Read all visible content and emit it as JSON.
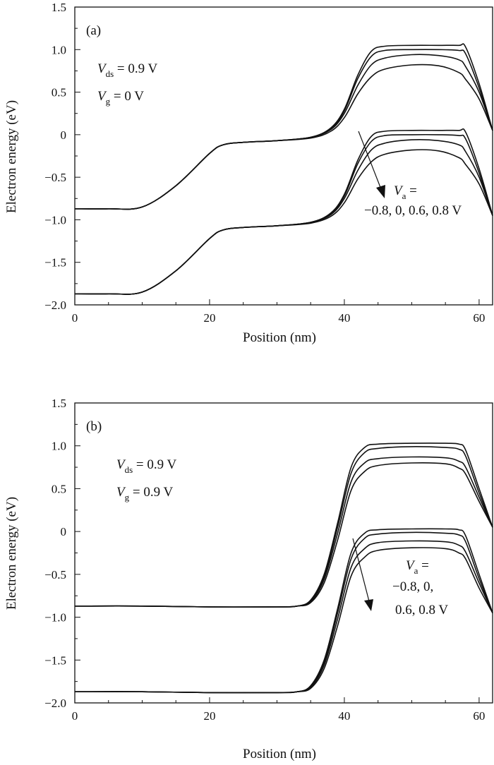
{
  "chart_data": [
    {
      "panel": "(a)",
      "type": "line",
      "xlabel": "Position (nm)",
      "ylabel": "Electron energy (eV)",
      "xlim": [
        0,
        62
      ],
      "ylim": [
        -2.0,
        1.5
      ],
      "xticks": [
        "0",
        "20",
        "40",
        "60"
      ],
      "yticks": [
        "1.5",
        "1.0",
        "0.5",
        "0",
        "-0.5",
        "-1.0",
        "-1.5",
        "-2.0"
      ],
      "grid": false,
      "annotations": {
        "vds": {
          "sym": "V",
          "sub": "ds",
          "rest": " = 0.9 V"
        },
        "vg": {
          "sym": "V",
          "sub": "g",
          "rest": " = 0 V"
        },
        "va_head": {
          "sym": "V",
          "sub": "a",
          "rest": " ="
        },
        "va_values": [
          "−0.8, 0,  0.6, 0.8 V"
        ]
      },
      "series": [
        {
          "band": "upper",
          "x": [
            0,
            5,
            10,
            15,
            20,
            22,
            25,
            30,
            35,
            38,
            40,
            42,
            44,
            46,
            50,
            54,
            57,
            58,
            60,
            62
          ],
          "y": [
            -0.87,
            -0.87,
            -0.85,
            -0.6,
            -0.22,
            -0.12,
            -0.09,
            -0.07,
            -0.03,
            0.08,
            0.3,
            0.7,
            0.98,
            1.04,
            1.05,
            1.05,
            1.05,
            1.03,
            0.6,
            0.05
          ]
        },
        {
          "band": "upper",
          "x": [
            0,
            5,
            10,
            15,
            20,
            22,
            25,
            30,
            35,
            38,
            40,
            42,
            44,
            46,
            50,
            54,
            57,
            58,
            60,
            62
          ],
          "y": [
            -0.87,
            -0.87,
            -0.85,
            -0.6,
            -0.22,
            -0.12,
            -0.09,
            -0.07,
            -0.03,
            0.07,
            0.28,
            0.66,
            0.92,
            0.99,
            1.0,
            1.0,
            0.99,
            0.95,
            0.55,
            0.05
          ]
        },
        {
          "band": "upper",
          "x": [
            0,
            5,
            10,
            15,
            20,
            22,
            25,
            30,
            35,
            38,
            40,
            42,
            44,
            46,
            50,
            54,
            57,
            58,
            60,
            62
          ],
          "y": [
            -0.87,
            -0.87,
            -0.85,
            -0.6,
            -0.22,
            -0.12,
            -0.09,
            -0.07,
            -0.03,
            0.06,
            0.25,
            0.58,
            0.82,
            0.9,
            0.94,
            0.93,
            0.88,
            0.8,
            0.5,
            0.05
          ]
        },
        {
          "band": "upper",
          "x": [
            0,
            5,
            10,
            15,
            20,
            22,
            25,
            30,
            35,
            38,
            40,
            42,
            44,
            46,
            50,
            54,
            57,
            58,
            60,
            62
          ],
          "y": [
            -0.87,
            -0.87,
            -0.85,
            -0.6,
            -0.22,
            -0.12,
            -0.09,
            -0.07,
            -0.04,
            0.04,
            0.2,
            0.48,
            0.68,
            0.77,
            0.82,
            0.81,
            0.73,
            0.65,
            0.42,
            0.05
          ]
        },
        {
          "band": "lower",
          "x": [
            0,
            5,
            10,
            15,
            20,
            22,
            25,
            30,
            35,
            38,
            40,
            42,
            44,
            46,
            50,
            54,
            57,
            58,
            60,
            62
          ],
          "y": [
            -1.87,
            -1.87,
            -1.85,
            -1.6,
            -1.22,
            -1.12,
            -1.09,
            -1.07,
            -1.03,
            -0.92,
            -0.7,
            -0.3,
            -0.02,
            0.04,
            0.05,
            0.05,
            0.05,
            0.03,
            -0.4,
            -0.95
          ]
        },
        {
          "band": "lower",
          "x": [
            0,
            5,
            10,
            15,
            20,
            22,
            25,
            30,
            35,
            38,
            40,
            42,
            44,
            46,
            50,
            54,
            57,
            58,
            60,
            62
          ],
          "y": [
            -1.87,
            -1.87,
            -1.85,
            -1.6,
            -1.22,
            -1.12,
            -1.09,
            -1.07,
            -1.03,
            -0.93,
            -0.72,
            -0.34,
            -0.08,
            -0.01,
            0.0,
            0.0,
            -0.01,
            -0.05,
            -0.45,
            -0.95
          ]
        },
        {
          "band": "lower",
          "x": [
            0,
            5,
            10,
            15,
            20,
            22,
            25,
            30,
            35,
            38,
            40,
            42,
            44,
            46,
            50,
            54,
            57,
            58,
            60,
            62
          ],
          "y": [
            -1.87,
            -1.87,
            -1.85,
            -1.6,
            -1.22,
            -1.12,
            -1.09,
            -1.07,
            -1.03,
            -0.94,
            -0.75,
            -0.42,
            -0.18,
            -0.1,
            -0.06,
            -0.07,
            -0.12,
            -0.2,
            -0.5,
            -0.95
          ]
        },
        {
          "band": "lower",
          "x": [
            0,
            5,
            10,
            15,
            20,
            22,
            25,
            30,
            35,
            38,
            40,
            42,
            44,
            46,
            50,
            54,
            57,
            58,
            60,
            62
          ],
          "y": [
            -1.87,
            -1.87,
            -1.85,
            -1.6,
            -1.22,
            -1.12,
            -1.09,
            -1.07,
            -1.04,
            -0.96,
            -0.8,
            -0.52,
            -0.32,
            -0.23,
            -0.18,
            -0.19,
            -0.27,
            -0.35,
            -0.58,
            -0.95
          ]
        }
      ]
    },
    {
      "panel": "(b)",
      "type": "line",
      "xlabel": "Position (nm)",
      "ylabel": "Electron energy (eV)",
      "xlim": [
        0,
        62
      ],
      "ylim": [
        -2.0,
        1.5
      ],
      "xticks": [
        "0",
        "20",
        "40",
        "60"
      ],
      "yticks": [
        "1.5",
        "1.0",
        "0.5",
        "0",
        "-0.5",
        "-1.0",
        "-1.5",
        "-2.0"
      ],
      "grid": false,
      "annotations": {
        "vds": {
          "sym": "V",
          "sub": "ds",
          "rest": " = 0.9 V"
        },
        "vg": {
          "sym": "V",
          "sub": "g",
          "rest": " = 0.9 V"
        },
        "va_head": {
          "sym": "V",
          "sub": "a",
          "rest": " ="
        },
        "va_values": [
          "−0.8, 0,",
          "0.6, 0.8 V"
        ]
      },
      "series": [
        {
          "band": "upper",
          "x": [
            0,
            10,
            20,
            30,
            33,
            35,
            37,
            39,
            41,
            43,
            45,
            50,
            55,
            57,
            58,
            60,
            62
          ],
          "y": [
            -0.87,
            -0.87,
            -0.88,
            -0.88,
            -0.87,
            -0.8,
            -0.5,
            0.1,
            0.75,
            0.98,
            1.02,
            1.03,
            1.03,
            1.02,
            0.95,
            0.5,
            0.05
          ]
        },
        {
          "band": "upper",
          "x": [
            0,
            10,
            20,
            30,
            33,
            35,
            37,
            39,
            41,
            43,
            45,
            50,
            55,
            57,
            58,
            60,
            62
          ],
          "y": [
            -0.87,
            -0.87,
            -0.88,
            -0.88,
            -0.87,
            -0.81,
            -0.53,
            0.05,
            0.68,
            0.92,
            0.97,
            0.99,
            0.98,
            0.96,
            0.88,
            0.45,
            0.05
          ]
        },
        {
          "band": "upper",
          "x": [
            0,
            10,
            20,
            30,
            33,
            35,
            37,
            39,
            41,
            43,
            45,
            50,
            55,
            57,
            58,
            60,
            62
          ],
          "y": [
            -0.87,
            -0.87,
            -0.88,
            -0.88,
            -0.87,
            -0.82,
            -0.56,
            -0.02,
            0.58,
            0.8,
            0.85,
            0.87,
            0.86,
            0.82,
            0.75,
            0.4,
            0.05
          ]
        },
        {
          "band": "upper",
          "x": [
            0,
            10,
            20,
            30,
            33,
            35,
            37,
            39,
            41,
            43,
            45,
            50,
            55,
            57,
            58,
            60,
            62
          ],
          "y": [
            -0.87,
            -0.87,
            -0.88,
            -0.88,
            -0.87,
            -0.83,
            -0.6,
            -0.1,
            0.48,
            0.7,
            0.77,
            0.8,
            0.79,
            0.74,
            0.67,
            0.35,
            0.05
          ]
        },
        {
          "band": "lower",
          "x": [
            0,
            10,
            20,
            30,
            33,
            35,
            37,
            39,
            41,
            43,
            45,
            50,
            55,
            57,
            58,
            60,
            62
          ],
          "y": [
            -1.87,
            -1.87,
            -1.88,
            -1.88,
            -1.87,
            -1.8,
            -1.5,
            -0.9,
            -0.25,
            -0.02,
            0.02,
            0.03,
            0.03,
            0.02,
            -0.05,
            -0.5,
            -0.95
          ]
        },
        {
          "band": "lower",
          "x": [
            0,
            10,
            20,
            30,
            33,
            35,
            37,
            39,
            41,
            43,
            45,
            50,
            55,
            57,
            58,
            60,
            62
          ],
          "y": [
            -1.87,
            -1.87,
            -1.88,
            -1.88,
            -1.87,
            -1.81,
            -1.53,
            -0.95,
            -0.32,
            -0.08,
            -0.03,
            -0.01,
            -0.02,
            -0.04,
            -0.12,
            -0.55,
            -0.95
          ]
        },
        {
          "band": "lower",
          "x": [
            0,
            10,
            20,
            30,
            33,
            35,
            37,
            39,
            41,
            43,
            45,
            50,
            55,
            57,
            58,
            60,
            62
          ],
          "y": [
            -1.87,
            -1.87,
            -1.88,
            -1.88,
            -1.87,
            -1.82,
            -1.56,
            -1.02,
            -0.42,
            -0.2,
            -0.13,
            -0.11,
            -0.12,
            -0.16,
            -0.24,
            -0.6,
            -0.95
          ]
        },
        {
          "band": "lower",
          "x": [
            0,
            10,
            20,
            30,
            33,
            35,
            37,
            39,
            41,
            43,
            45,
            50,
            55,
            57,
            58,
            60,
            62
          ],
          "y": [
            -1.87,
            -1.87,
            -1.88,
            -1.88,
            -1.87,
            -1.83,
            -1.6,
            -1.1,
            -0.52,
            -0.3,
            -0.22,
            -0.19,
            -0.2,
            -0.25,
            -0.32,
            -0.66,
            -0.95
          ]
        }
      ]
    }
  ]
}
